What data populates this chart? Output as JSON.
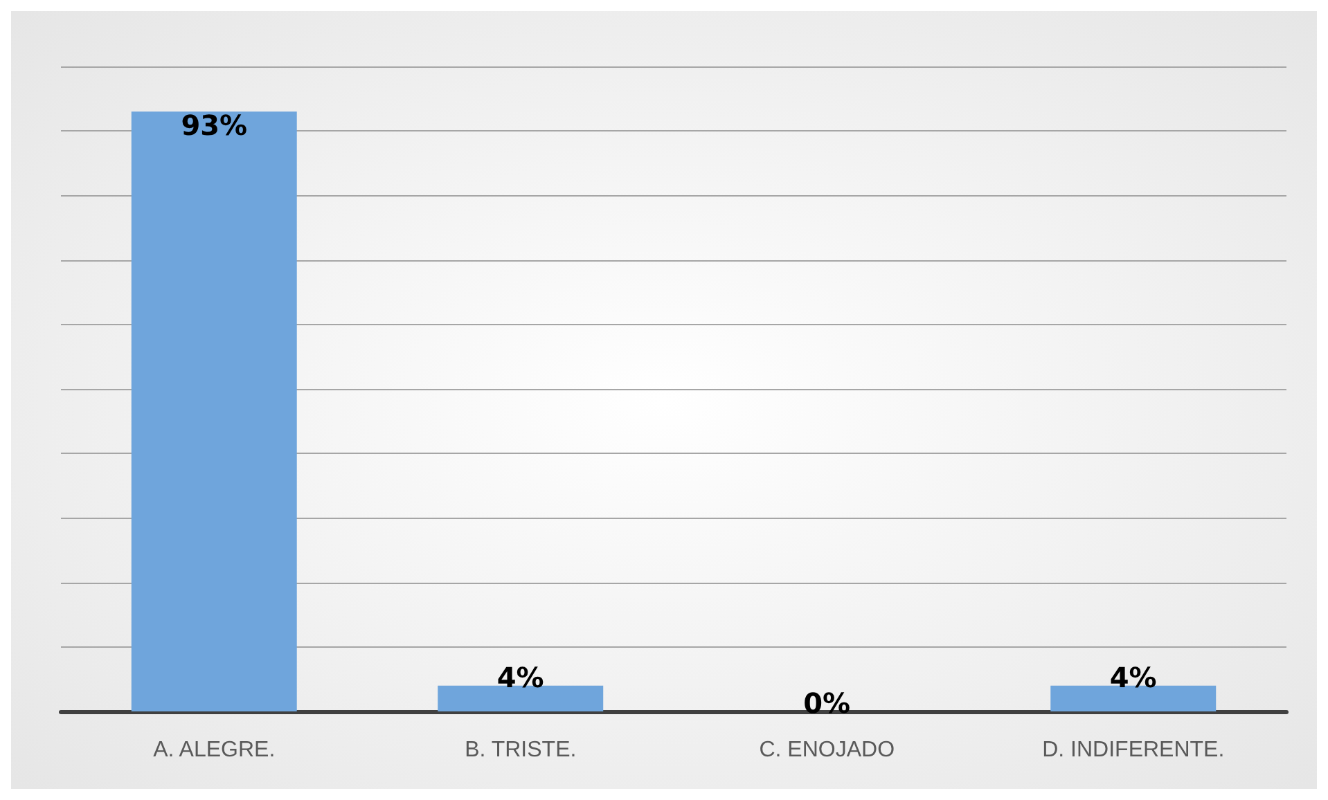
{
  "chart_data": {
    "type": "bar",
    "categories": [
      "A. ALEGRE.",
      "B. TRISTE.",
      "C. ENOJADO",
      "D. INDIFERENTE."
    ],
    "values": [
      93,
      4,
      0,
      4
    ],
    "value_labels": [
      "93%",
      "4%",
      "0%",
      "4%"
    ],
    "color": "#6fa5dc",
    "ylim": [
      0,
      100
    ],
    "yticks": [
      0,
      10,
      20,
      30,
      40,
      50,
      60,
      70,
      80,
      90,
      100
    ],
    "tick_labels": "x",
    "grid": "y"
  }
}
